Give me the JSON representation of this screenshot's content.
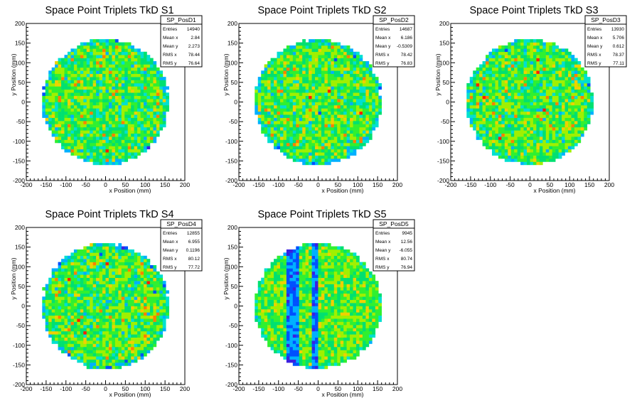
{
  "chart_data": [
    {
      "type": "heatmap",
      "title": "Space Point Triplets TkD S1",
      "xlabel": "x Position (mm)",
      "ylabel": "y Position (mm)",
      "xlim": [
        -200,
        200
      ],
      "ylim": [
        -200,
        200
      ],
      "xticks": [
        -200,
        -150,
        -100,
        -50,
        0,
        50,
        100,
        150,
        200
      ],
      "yticks": [
        -200,
        -150,
        -100,
        -50,
        0,
        50,
        100,
        150,
        200
      ],
      "stats": {
        "name": "SP_PosD1",
        "rows": [
          {
            "label": "Entries",
            "value": "14940"
          },
          {
            "label": "Mean x",
            "value": "2.84"
          },
          {
            "label": "Mean y",
            "value": "2.273"
          },
          {
            "label": "RMS x",
            "value": "78.44"
          },
          {
            "label": "RMS y",
            "value": "76.64"
          }
        ]
      },
      "pattern": "uniform"
    },
    {
      "type": "heatmap",
      "title": "Space Point Triplets TkD S2",
      "xlabel": "x Position (mm)",
      "ylabel": "y Position (mm)",
      "xlim": [
        -200,
        200
      ],
      "ylim": [
        -200,
        200
      ],
      "xticks": [
        -200,
        -150,
        -100,
        -50,
        0,
        50,
        100,
        150,
        200
      ],
      "yticks": [
        -200,
        -150,
        -100,
        -50,
        0,
        50,
        100,
        150,
        200
      ],
      "stats": {
        "name": "SP_PosD2",
        "rows": [
          {
            "label": "Entries",
            "value": "14687"
          },
          {
            "label": "Mean x",
            "value": "6.186"
          },
          {
            "label": "Mean y",
            "value": "-0.5309"
          },
          {
            "label": "RMS x",
            "value": "78.42"
          },
          {
            "label": "RMS y",
            "value": "76.83"
          }
        ]
      },
      "pattern": "uniform"
    },
    {
      "type": "heatmap",
      "title": "Space Point Triplets TkD S3",
      "xlabel": "x Position (mm)",
      "ylabel": "y Position (mm)",
      "xlim": [
        -200,
        200
      ],
      "ylim": [
        -200,
        200
      ],
      "xticks": [
        -200,
        -150,
        -100,
        -50,
        0,
        50,
        100,
        150,
        200
      ],
      "yticks": [
        -200,
        -150,
        -100,
        -50,
        0,
        50,
        100,
        150,
        200
      ],
      "stats": {
        "name": "SP_PosD3",
        "rows": [
          {
            "label": "Entries",
            "value": "13930"
          },
          {
            "label": "Mean x",
            "value": "5.706"
          },
          {
            "label": "Mean y",
            "value": "0.612"
          },
          {
            "label": "RMS x",
            "value": "78.37"
          },
          {
            "label": "RMS y",
            "value": "77.11"
          }
        ]
      },
      "pattern": "uniform"
    },
    {
      "type": "heatmap",
      "title": "Space Point Triplets TkD S4",
      "xlabel": "x Position (mm)",
      "ylabel": "y Position (mm)",
      "xlim": [
        -200,
        200
      ],
      "ylim": [
        -200,
        200
      ],
      "xticks": [
        -200,
        -150,
        -100,
        -50,
        0,
        50,
        100,
        150,
        200
      ],
      "yticks": [
        -200,
        -150,
        -100,
        -50,
        0,
        50,
        100,
        150,
        200
      ],
      "stats": {
        "name": "SP_PosD4",
        "rows": [
          {
            "label": "Entries",
            "value": "12855"
          },
          {
            "label": "Mean x",
            "value": "6.955"
          },
          {
            "label": "Mean y",
            "value": "0.1196"
          },
          {
            "label": "RMS x",
            "value": "80.12"
          },
          {
            "label": "RMS y",
            "value": "77.72"
          }
        ]
      },
      "pattern": "uniform"
    },
    {
      "type": "heatmap",
      "title": "Space Point Triplets TkD S5",
      "xlabel": "x Position (mm)",
      "ylabel": "y Position (mm)",
      "xlim": [
        -200,
        200
      ],
      "ylim": [
        -200,
        200
      ],
      "xticks": [
        -200,
        -150,
        -100,
        -50,
        0,
        50,
        100,
        150,
        200
      ],
      "yticks": [
        -200,
        -150,
        -100,
        -50,
        0,
        50,
        100,
        150,
        200
      ],
      "stats": {
        "name": "SP_PosD5",
        "rows": [
          {
            "label": "Entries",
            "value": "9945"
          },
          {
            "label": "Mean x",
            "value": "12.56"
          },
          {
            "label": "Mean y",
            "value": "-6.055"
          },
          {
            "label": "RMS x",
            "value": "80.74"
          },
          {
            "label": "RMS y",
            "value": "76.94"
          }
        ]
      },
      "pattern": "stripes"
    }
  ],
  "colors": {
    "background": "#ffffff",
    "frame": "#000000",
    "palette": [
      "#3b1fe0",
      "#0050ff",
      "#00b0ff",
      "#00e0d0",
      "#00e070",
      "#30f030",
      "#a0f000",
      "#f0d000",
      "#ff8000",
      "#ff2000"
    ]
  }
}
